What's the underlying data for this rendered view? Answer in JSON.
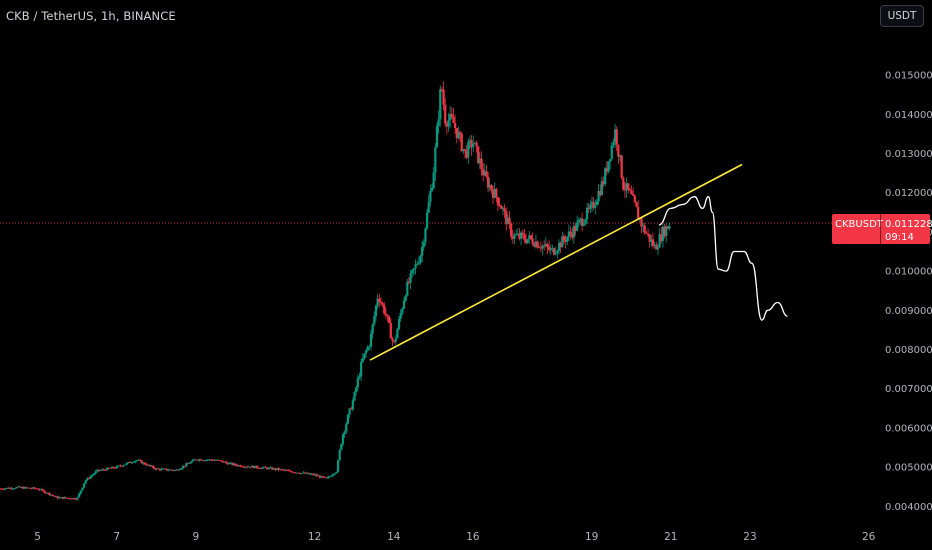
{
  "header": {
    "title": "CKB / TetherUS, 1h, BINANCE",
    "currency_button": "USDT"
  },
  "price_badge": {
    "symbol": "CKBUSDT",
    "price": "0.011228",
    "countdown": "09:14",
    "color": "#f23645"
  },
  "colors": {
    "background": "#000000",
    "up_candle": "#089981",
    "down_candle": "#f23645",
    "trendline": "#ffeb3b",
    "projection": "#ffffff",
    "price_line": "#f23645"
  },
  "chart_data": {
    "type": "candlestick",
    "title": "CKB / TetherUS, 1h, BINANCE",
    "x_axis": {
      "tick_labels": [
        "5",
        "7",
        "9",
        "12",
        "14",
        "16",
        "19",
        "21",
        "23",
        "26"
      ],
      "tick_days": [
        5,
        7,
        9,
        12,
        14,
        16,
        19,
        21,
        23,
        26
      ],
      "range": [
        4.05,
        27.6
      ]
    },
    "y_axis": {
      "tick_labels": [
        "0.004000",
        "0.005000",
        "0.006000",
        "0.007000",
        "0.008000",
        "0.009000",
        "0.010000",
        "0.011000",
        "0.012000",
        "0.013000",
        "0.014000",
        "0.015000"
      ],
      "tick_values": [
        0.004,
        0.005,
        0.006,
        0.007,
        0.008,
        0.009,
        0.01,
        0.011,
        0.012,
        0.013,
        0.014,
        0.015
      ],
      "range": [
        0.00365,
        0.01605
      ],
      "position": "right"
    },
    "last_price": 0.011228,
    "price_path": [
      [
        4.05,
        0.00445
      ],
      [
        4.5,
        0.00448
      ],
      [
        5.0,
        0.00445
      ],
      [
        5.5,
        0.00422
      ],
      [
        6.0,
        0.0042
      ],
      [
        6.2,
        0.00465
      ],
      [
        6.5,
        0.0049
      ],
      [
        7.0,
        0.005
      ],
      [
        7.5,
        0.00518
      ],
      [
        8.0,
        0.00495
      ],
      [
        8.5,
        0.00492
      ],
      [
        9.0,
        0.0052
      ],
      [
        9.5,
        0.00518
      ],
      [
        10.0,
        0.00505
      ],
      [
        11.0,
        0.00495
      ],
      [
        12.0,
        0.0048
      ],
      [
        12.3,
        0.0047
      ],
      [
        12.55,
        0.0049
      ],
      [
        12.7,
        0.0058
      ],
      [
        13.0,
        0.0068
      ],
      [
        13.2,
        0.0077
      ],
      [
        13.4,
        0.0082
      ],
      [
        13.6,
        0.0094
      ],
      [
        13.8,
        0.0089
      ],
      [
        14.0,
        0.0081
      ],
      [
        14.3,
        0.0095
      ],
      [
        14.7,
        0.0105
      ],
      [
        15.0,
        0.0125
      ],
      [
        15.2,
        0.0148
      ],
      [
        15.3,
        0.0139
      ],
      [
        15.5,
        0.0138
      ],
      [
        15.8,
        0.013
      ],
      [
        16.0,
        0.0133
      ],
      [
        16.3,
        0.0124
      ],
      [
        16.7,
        0.0117
      ],
      [
        17.0,
        0.0109
      ],
      [
        17.5,
        0.0108
      ],
      [
        18.0,
        0.0105
      ],
      [
        18.5,
        0.011
      ],
      [
        19.0,
        0.0116
      ],
      [
        19.3,
        0.0123
      ],
      [
        19.6,
        0.0136
      ],
      [
        19.8,
        0.0122
      ],
      [
        20.0,
        0.0119
      ],
      [
        20.3,
        0.0111
      ],
      [
        20.6,
        0.0106
      ],
      [
        20.8,
        0.011
      ],
      [
        21.0,
        0.01123
      ]
    ],
    "trendline": {
      "start": [
        13.4,
        0.00773
      ],
      "end": [
        22.8,
        0.01272
      ]
    },
    "projection": [
      [
        20.7,
        0.01118
      ],
      [
        21.0,
        0.0116
      ],
      [
        21.3,
        0.0117
      ],
      [
        21.6,
        0.0119
      ],
      [
        21.8,
        0.0116
      ],
      [
        21.95,
        0.0119
      ],
      [
        22.05,
        0.0115
      ],
      [
        22.2,
        0.01005
      ],
      [
        22.4,
        0.01
      ],
      [
        22.6,
        0.0105
      ],
      [
        22.85,
        0.0105
      ],
      [
        23.05,
        0.0102
      ],
      [
        23.3,
        0.00875
      ],
      [
        23.45,
        0.009
      ],
      [
        23.7,
        0.0092
      ],
      [
        23.95,
        0.00885
      ]
    ]
  }
}
